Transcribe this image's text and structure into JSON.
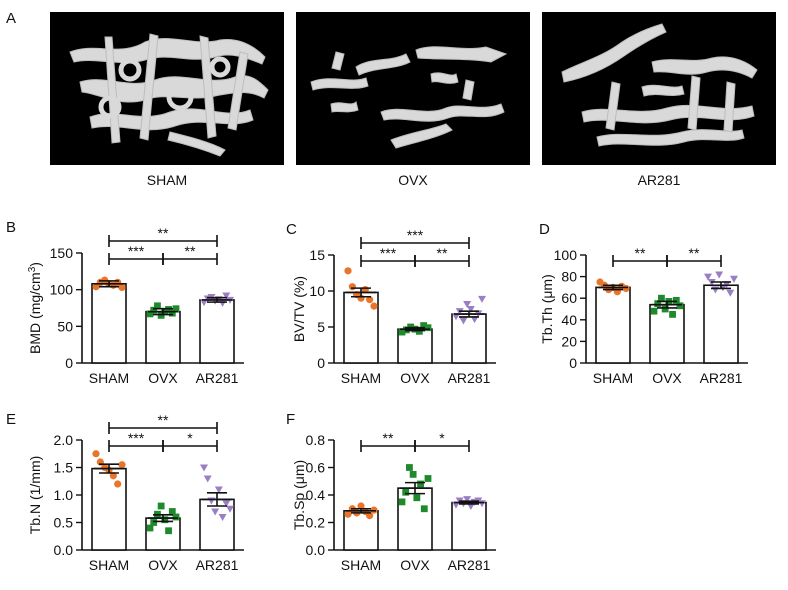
{
  "figure": {
    "panel_a": {
      "letter": "A",
      "images": [
        {
          "caption": "SHAM",
          "content": "micro-CT reconstruction, dense trabecular network"
        },
        {
          "caption": "OVX",
          "content": "micro-CT reconstruction, sparse trabecular fragments"
        },
        {
          "caption": "AR281",
          "content": "micro-CT reconstruction, partially restored trabeculae"
        }
      ]
    }
  },
  "colors": {
    "SHAM": "#e8752a",
    "OVX": "#1f8a2c",
    "AR281": "#9b7fc4",
    "axis": "#111111"
  },
  "chart_data": [
    {
      "letter": "B",
      "type": "bar",
      "categories": [
        "SHAM",
        "OVX",
        "AR281"
      ],
      "values": [
        108,
        70,
        86
      ],
      "errors": [
        4,
        4,
        3
      ],
      "ylabel": "BMD (mg/cm",
      "ylabel_sup": "3",
      "ylabel_end": ")",
      "ylim": [
        0,
        150
      ],
      "yticks": [
        0,
        50,
        100,
        150
      ],
      "tick_labels": [
        "0",
        "50",
        "100",
        "150"
      ],
      "points": [
        [
          104,
          110,
          113,
          108,
          106,
          110,
          103
        ],
        [
          67,
          72,
          78,
          65,
          70,
          73,
          68,
          74
        ],
        [
          83,
          88,
          90,
          85,
          87,
          82,
          92,
          86
        ]
      ],
      "markers": [
        "circle",
        "square",
        "triangle"
      ],
      "significance": [
        {
          "from": 0,
          "to": 2,
          "label": "**"
        },
        {
          "from": 0,
          "to": 1,
          "label": "***"
        },
        {
          "from": 1,
          "to": 2,
          "label": "**"
        }
      ]
    },
    {
      "letter": "C",
      "type": "bar",
      "categories": [
        "SHAM",
        "OVX",
        "AR281"
      ],
      "values": [
        9.8,
        4.7,
        6.8
      ],
      "errors": [
        0.6,
        0.2,
        0.4
      ],
      "ylabel": "BV/TV (%)",
      "ylabel_sup": "",
      "ylabel_end": "",
      "ylim": [
        0,
        15
      ],
      "yticks": [
        0,
        5,
        10,
        15
      ],
      "tick_labels": [
        "0",
        "5",
        "10",
        "15"
      ],
      "points": [
        [
          12.8,
          10.6,
          9.5,
          9.0,
          10.2,
          8.8,
          7.9
        ],
        [
          4.3,
          4.6,
          5.0,
          4.7,
          4.4,
          5.2,
          4.9
        ],
        [
          6.5,
          7.2,
          5.9,
          8.2,
          7.5,
          6.1,
          6.9,
          8.9
        ]
      ],
      "markers": [
        "circle",
        "square",
        "triangle"
      ],
      "significance": [
        {
          "from": 0,
          "to": 2,
          "label": "***"
        },
        {
          "from": 0,
          "to": 1,
          "label": "***"
        },
        {
          "from": 1,
          "to": 2,
          "label": "**"
        }
      ]
    },
    {
      "letter": "D",
      "type": "bar",
      "categories": [
        "SHAM",
        "OVX",
        "AR281"
      ],
      "values": [
        70,
        54,
        72
      ],
      "errors": [
        2,
        3,
        3
      ],
      "ylabel": "Tb.Th (μm)",
      "ylabel_sup": "",
      "ylabel_end": "",
      "ylim": [
        0,
        100
      ],
      "yticks": [
        0,
        20,
        40,
        60,
        80,
        100
      ],
      "tick_labels": [
        "0",
        "20",
        "40",
        "60",
        "80",
        "100"
      ],
      "points": [
        [
          75,
          72,
          68,
          70,
          66,
          71,
          69
        ],
        [
          48,
          55,
          60,
          50,
          57,
          45,
          58,
          53
        ],
        [
          80,
          75,
          68,
          82,
          70,
          73,
          65,
          78
        ]
      ],
      "markers": [
        "circle",
        "square",
        "triangle"
      ],
      "significance": [
        {
          "from": 0,
          "to": 1,
          "label": "**"
        },
        {
          "from": 1,
          "to": 2,
          "label": "**"
        }
      ]
    },
    {
      "letter": "E",
      "type": "bar",
      "categories": [
        "SHAM",
        "OVX",
        "AR281"
      ],
      "values": [
        1.48,
        0.58,
        0.92
      ],
      "errors": [
        0.08,
        0.06,
        0.12
      ],
      "ylabel": "Tb.N (1/mm)",
      "ylabel_sup": "",
      "ylabel_end": "",
      "ylim": [
        0,
        2.0
      ],
      "yticks": [
        0,
        0.5,
        1.0,
        1.5,
        2.0
      ],
      "tick_labels": [
        "0.0",
        "0.5",
        "1.0",
        "1.5",
        "2.0"
      ],
      "points": [
        [
          1.75,
          1.6,
          1.5,
          1.45,
          1.35,
          1.2,
          1.55
        ],
        [
          0.4,
          0.5,
          0.65,
          0.8,
          0.55,
          0.35,
          0.7,
          0.6
        ],
        [
          1.5,
          1.3,
          0.9,
          0.7,
          1.1,
          0.6,
          0.85,
          0.75
        ]
      ],
      "markers": [
        "circle",
        "square",
        "triangle"
      ],
      "significance": [
        {
          "from": 0,
          "to": 2,
          "label": "**"
        },
        {
          "from": 0,
          "to": 1,
          "label": "***"
        },
        {
          "from": 1,
          "to": 2,
          "label": "*"
        }
      ]
    },
    {
      "letter": "F",
      "type": "bar",
      "categories": [
        "SHAM",
        "OVX",
        "AR281"
      ],
      "values": [
        0.285,
        0.45,
        0.345
      ],
      "errors": [
        0.015,
        0.04,
        0.01
      ],
      "ylabel": "Tb.Sp (μm)",
      "ylabel_sup": "",
      "ylabel_end": "",
      "ylim": [
        0,
        0.8
      ],
      "yticks": [
        0,
        0.2,
        0.4,
        0.6,
        0.8
      ],
      "tick_labels": [
        "0.0",
        "0.2",
        "0.4",
        "0.6",
        "0.8"
      ],
      "points": [
        [
          0.26,
          0.3,
          0.27,
          0.32,
          0.28,
          0.25,
          0.29
        ],
        [
          0.35,
          0.42,
          0.6,
          0.55,
          0.38,
          0.48,
          0.3,
          0.52
        ],
        [
          0.33,
          0.36,
          0.34,
          0.37,
          0.32,
          0.35,
          0.36,
          0.34
        ]
      ],
      "markers": [
        "circle",
        "square",
        "triangle"
      ],
      "significance": [
        {
          "from": 0,
          "to": 1,
          "label": "**"
        },
        {
          "from": 1,
          "to": 2,
          "label": "*"
        }
      ]
    }
  ]
}
